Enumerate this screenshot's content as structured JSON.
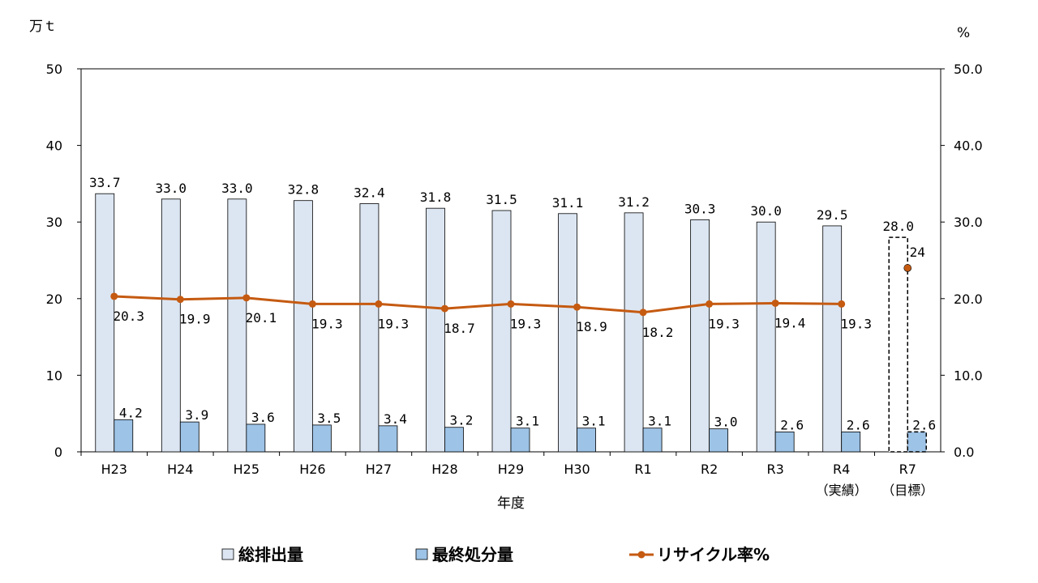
{
  "chart_data": {
    "type": "bar",
    "categories": [
      "H23",
      "H24",
      "H25",
      "H26",
      "H27",
      "H28",
      "H29",
      "H30",
      "R1",
      "R2",
      "R3",
      "R4",
      "R7"
    ],
    "category_sublabels": [
      "",
      "",
      "",
      "",
      "",
      "",
      "",
      "",
      "",
      "",
      "",
      "（実績）",
      "（目標）"
    ],
    "xlabel": "年度",
    "ylabel_left": "万ｔ",
    "ylabel_right": "%",
    "ylim_left": [
      0,
      50
    ],
    "ylim_right": [
      0.0,
      50.0
    ],
    "yticks_left": [
      "0",
      "10",
      "20",
      "30",
      "40",
      "50"
    ],
    "yticks_right": [
      "0.0",
      "10.0",
      "20.0",
      "30.0",
      "40.0",
      "50.0"
    ],
    "grid": false,
    "legend_position": "bottom",
    "series": [
      {
        "name": "総排出量",
        "kind": "bar",
        "axis": "left",
        "color": "#dce6f2",
        "values": [
          33.7,
          33.0,
          33.0,
          32.8,
          32.4,
          31.8,
          31.5,
          31.1,
          31.2,
          30.3,
          30.0,
          29.5,
          28.0
        ],
        "labels": [
          "33.7",
          "33.0",
          "33.0",
          "32.8",
          "32.4",
          "31.8",
          "31.5",
          "31.1",
          "31.2",
          "30.3",
          "30.0",
          "29.5",
          "28.0"
        ],
        "target_style_last": true
      },
      {
        "name": "最終処分量",
        "kind": "bar",
        "axis": "left",
        "color": "#9dc3e6",
        "values": [
          4.2,
          3.9,
          3.6,
          3.5,
          3.4,
          3.2,
          3.1,
          3.1,
          3.1,
          3.0,
          2.6,
          2.6,
          2.6
        ],
        "labels": [
          "4.2",
          "3.9",
          "3.6",
          "3.5",
          "3.4",
          "3.2",
          "3.1",
          "3.1",
          "3.1",
          "3.0",
          "2.6",
          "2.6",
          "2.6"
        ],
        "target_style_last": true
      },
      {
        "name": "リサイクル率%",
        "kind": "line",
        "axis": "right",
        "color": "#c55a11",
        "values": [
          20.3,
          19.9,
          20.1,
          19.3,
          19.3,
          18.7,
          19.3,
          18.9,
          18.2,
          19.3,
          19.4,
          19.3,
          24
        ],
        "labels": [
          "20.3",
          "19.9",
          "20.1",
          "19.3",
          "19.3",
          "18.7",
          "19.3",
          "18.9",
          "18.2",
          "19.3",
          "19.4",
          "19.3",
          "24"
        ],
        "line_breaks_before_last": true
      }
    ]
  }
}
